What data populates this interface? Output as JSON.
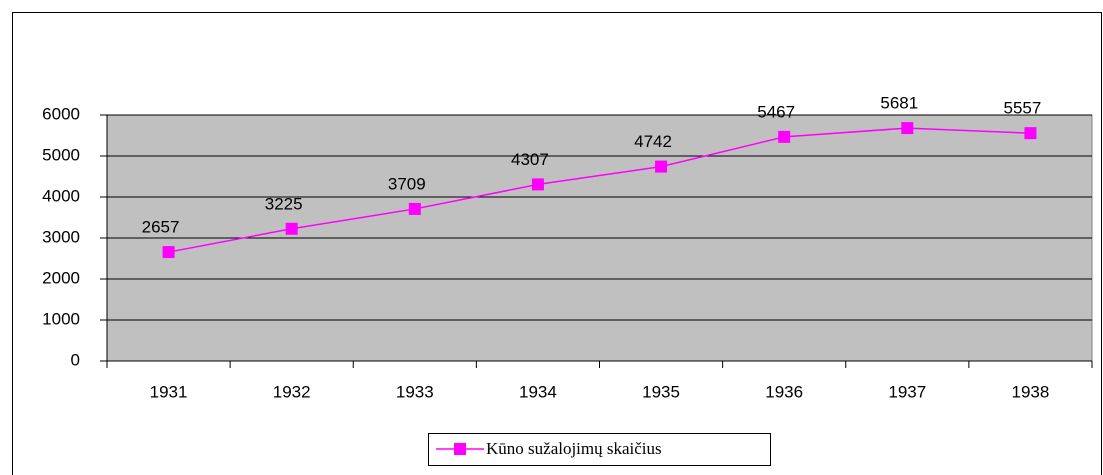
{
  "chart_data": {
    "type": "line",
    "categories": [
      "1931",
      "1932",
      "1933",
      "1934",
      "1935",
      "1936",
      "1937",
      "1938"
    ],
    "series": [
      {
        "name": "Kūno sužalojimų skaičius",
        "color": "#ff00ff",
        "values": [
          2657,
          3225,
          3709,
          4307,
          4742,
          5467,
          5681,
          5557
        ]
      }
    ],
    "ylim": [
      0,
      6000
    ],
    "yticks": [
      0,
      1000,
      2000,
      3000,
      4000,
      5000,
      6000
    ],
    "grid": true,
    "legend": "bottom",
    "plot_background": "#c0c0c0"
  }
}
